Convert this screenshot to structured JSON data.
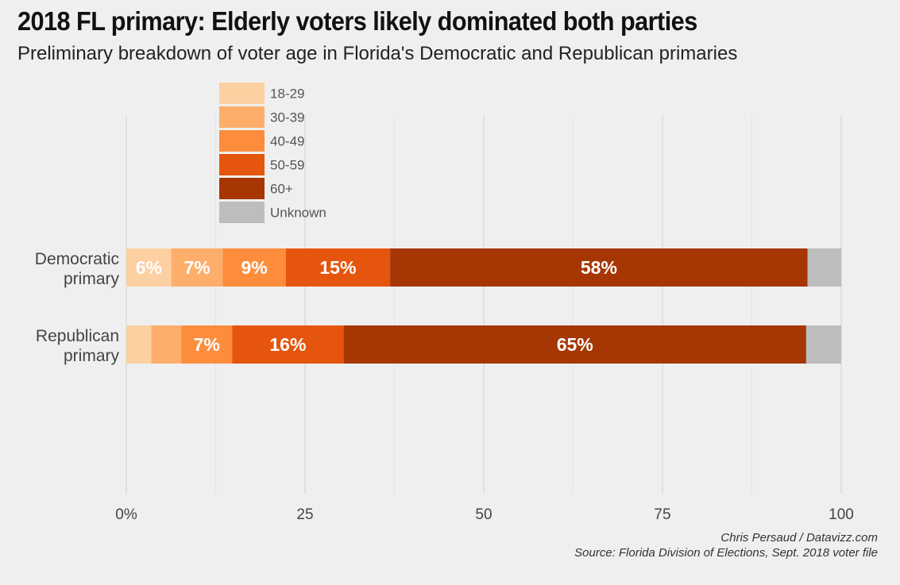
{
  "title": "2018 FL primary: Elderly voters likely dominated both parties",
  "subtitle": "Preliminary breakdown of voter age in Florida's Democratic and Republican primaries",
  "credit": "Chris Persaud / Datavizz.com",
  "source": "Source: Florida Division of Elections, Sept. 2018 voter file",
  "chart_data": {
    "type": "bar",
    "orientation": "horizontal",
    "stacked": true,
    "categories": [
      "Democratic primary",
      "Republican primary"
    ],
    "category_lines": [
      [
        "Democratic",
        "primary"
      ],
      [
        "Republican",
        "primary"
      ]
    ],
    "series": [
      {
        "name": "18-29",
        "color": "#fdd0a2",
        "values": [
          6.3,
          3.5
        ],
        "labels": [
          "6%",
          ""
        ]
      },
      {
        "name": "30-39",
        "color": "#fdae6b",
        "values": [
          7.2,
          4.2
        ],
        "labels": [
          "7%",
          ""
        ]
      },
      {
        "name": "40-49",
        "color": "#fd8d3c",
        "values": [
          8.8,
          7.1
        ],
        "labels": [
          "9%",
          "7%"
        ]
      },
      {
        "name": "50-59",
        "color": "#e6550d",
        "values": [
          14.6,
          15.6
        ],
        "labels": [
          "15%",
          "16%"
        ]
      },
      {
        "name": "60+",
        "color": "#a63603",
        "values": [
          58.4,
          64.7
        ],
        "labels": [
          "58%",
          "65%"
        ]
      },
      {
        "name": "Unknown",
        "color": "#bdbdbd",
        "values": [
          4.7,
          4.9
        ],
        "labels": [
          "",
          ""
        ]
      }
    ],
    "xlim": [
      0,
      100
    ],
    "xticks": [
      {
        "value": 0,
        "label": "0%"
      },
      {
        "value": 25,
        "label": "25"
      },
      {
        "value": 50,
        "label": "50"
      },
      {
        "value": 75,
        "label": "75"
      },
      {
        "value": 100,
        "label": "100"
      }
    ],
    "grid": true,
    "legend_position": "top-left"
  }
}
